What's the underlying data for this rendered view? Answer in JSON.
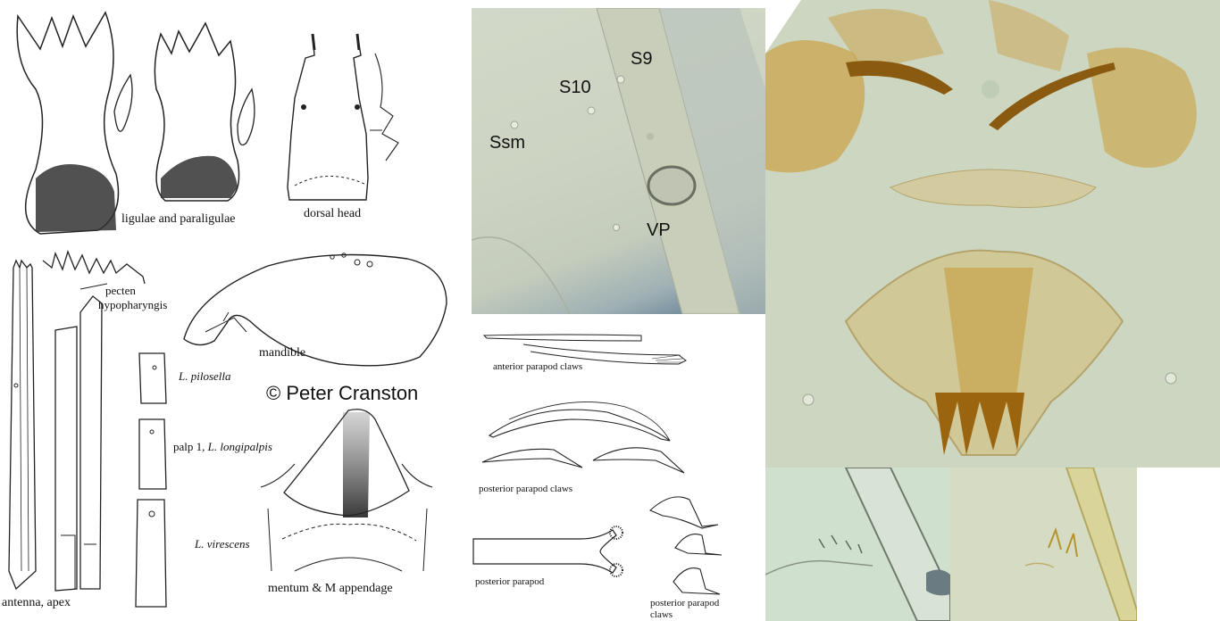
{
  "drawings": {
    "ligulae_label": "ligulae and paraligulae",
    "dorsal_head_label": "dorsal head",
    "pecten_label_line1": "pecten",
    "pecten_label_line2": "hypopharyngis",
    "mandible_label": "mandible",
    "pilosella_label": "L. pilosella",
    "palp_label_prefix": "palp 1, ",
    "palp_label_species": "L. longipalpis",
    "virescens_label": "L. virescens",
    "antenna_label": "antenna, apex",
    "mentum_label": "mentum & M appendage",
    "copyright": "© Peter Cranston"
  },
  "micrograph_top": {
    "labels": [
      "S9",
      "S10",
      "Ssm",
      "VP"
    ]
  },
  "claws": {
    "anterior_label": "anterior parapod claws",
    "posterior_label": "posterior parapod claws",
    "posterior_parapod_label": "posterior parapod",
    "posterior_claws_line1": "posterior parapod",
    "posterior_claws_line2": "claws"
  }
}
